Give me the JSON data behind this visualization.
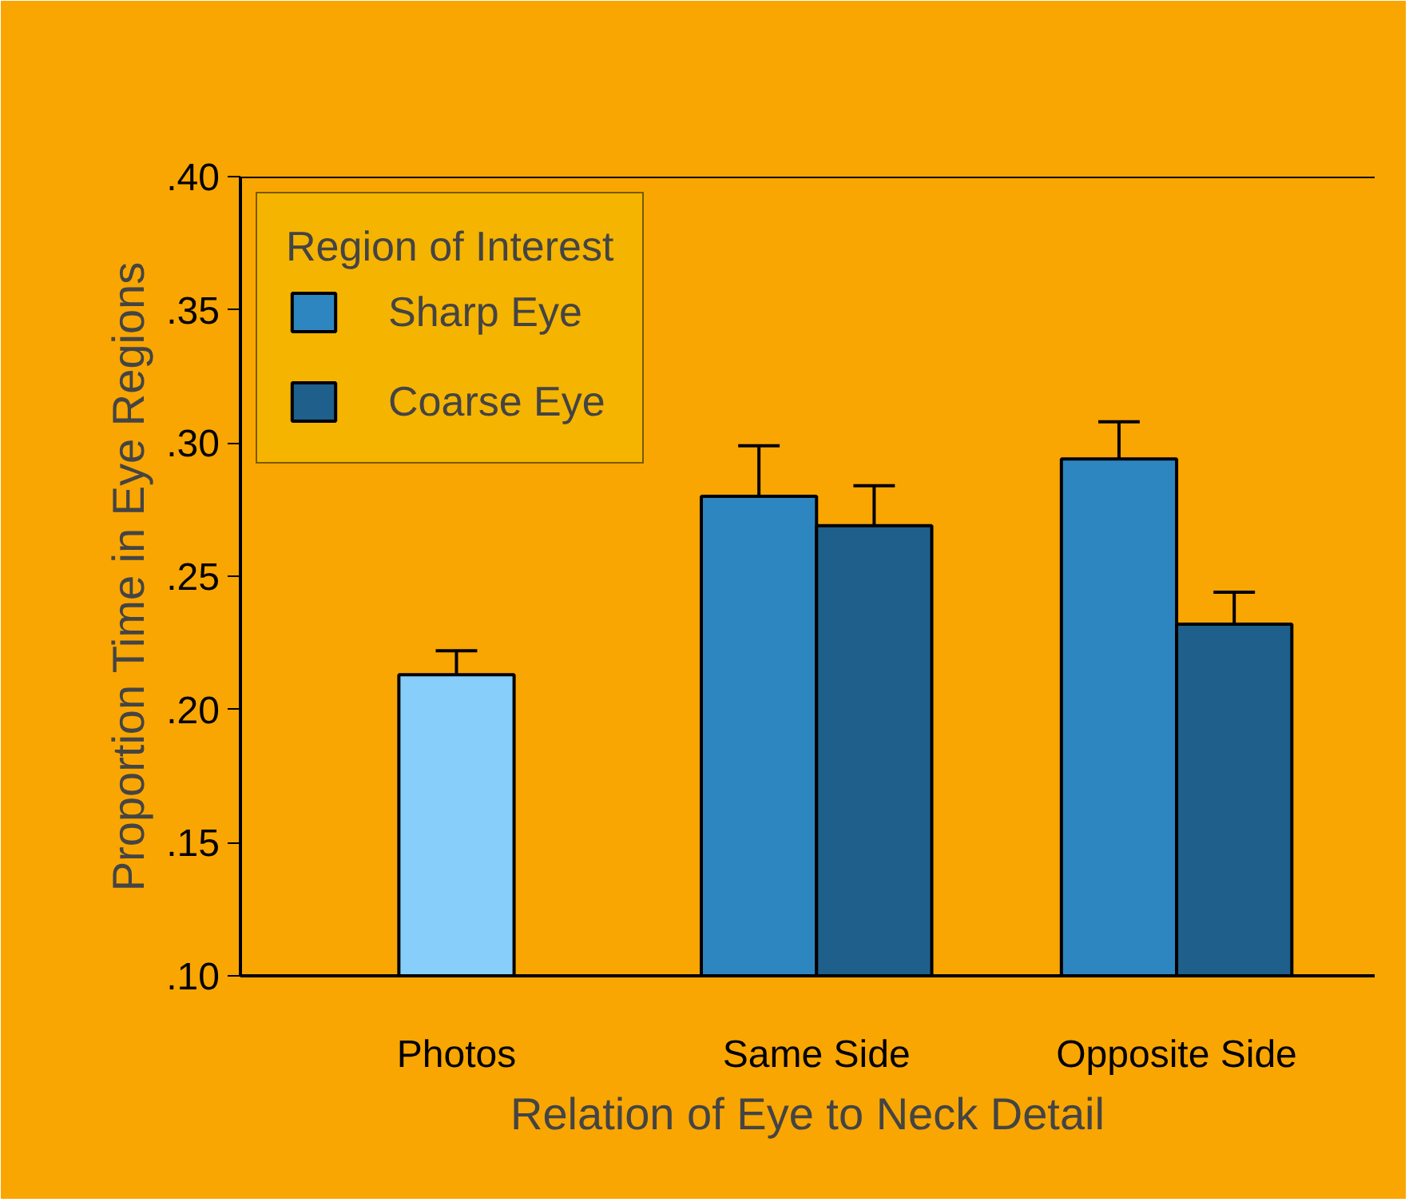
{
  "chart_data": {
    "type": "bar",
    "xlabel": "Relation of Eye to Neck Detail",
    "ylabel": "Proportion Time in Eye Regions",
    "legend_title": "Region of Interest",
    "legend": "top left",
    "grid": false,
    "categories": [
      "Photos",
      "Same Side",
      "Opposite Side"
    ],
    "series": [
      {
        "color": "#87cefa",
        "values": [
          0.213,
          null,
          null
        ],
        "errors": [
          [
            0.213,
            0.222
          ],
          null,
          null
        ]
      },
      {
        "name": "Sharp Eye",
        "color": "#2e86c1",
        "values": [
          null,
          0.28,
          0.294
        ],
        "errors": [
          null,
          [
            0.28,
            0.299
          ],
          [
            0.294,
            0.308
          ]
        ]
      },
      {
        "name": "Coarse Eye",
        "color": "#1f5f8b",
        "values": [
          null,
          0.269,
          0.232
        ],
        "errors": [
          null,
          [
            0.269,
            0.284
          ],
          [
            0.232,
            0.244
          ]
        ]
      }
    ],
    "ylim": [
      0.1,
      0.4
    ],
    "yticks": [
      {
        "value": 0.1,
        "label": ".10"
      },
      {
        "value": 0.15,
        "label": ".15"
      },
      {
        "value": 0.2,
        "label": ".20"
      },
      {
        "value": 0.25,
        "label": ".25"
      },
      {
        "value": 0.3,
        "label": ".30"
      },
      {
        "value": 0.35,
        "label": ".35"
      },
      {
        "value": 0.4,
        "label": ".40"
      }
    ]
  }
}
